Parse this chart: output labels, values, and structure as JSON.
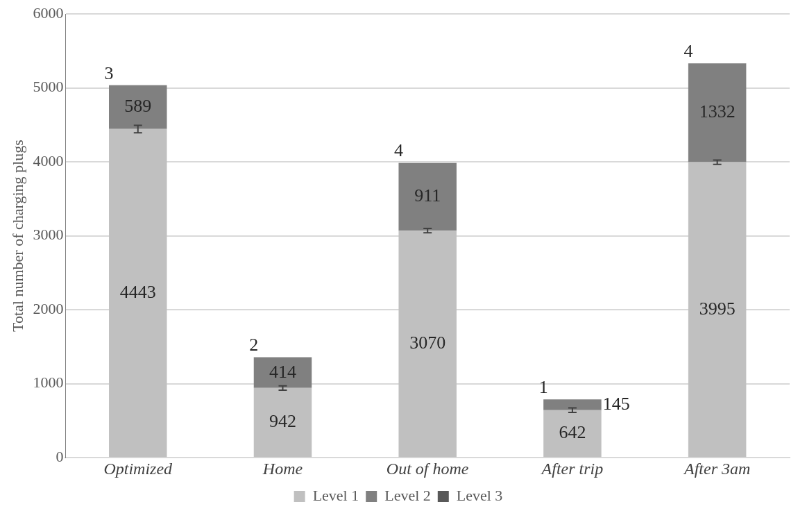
{
  "chart_data": {
    "type": "bar",
    "stacked": true,
    "ylabel": "Total number of charging plugs",
    "categories": [
      "Optimized",
      "Home",
      "Out of home",
      "After trip",
      "After 3am"
    ],
    "series": [
      {
        "name": "Level 1",
        "color": "#c0c0c0",
        "values": [
          4443,
          942,
          3070,
          642,
          3995
        ],
        "errors": [
          50,
          30,
          30,
          30,
          30
        ]
      },
      {
        "name": "Level 2",
        "color": "#808080",
        "values": [
          589,
          414,
          911,
          145,
          1332
        ]
      },
      {
        "name": "Level 3",
        "color": "#595959",
        "values": [
          3,
          2,
          4,
          1,
          4
        ]
      }
    ],
    "ylim": [
      0,
      6000
    ],
    "yticks": [
      0,
      1000,
      2000,
      3000,
      4000,
      5000,
      6000
    ],
    "grid": "y",
    "legend": "bottom",
    "data_labels": true
  }
}
